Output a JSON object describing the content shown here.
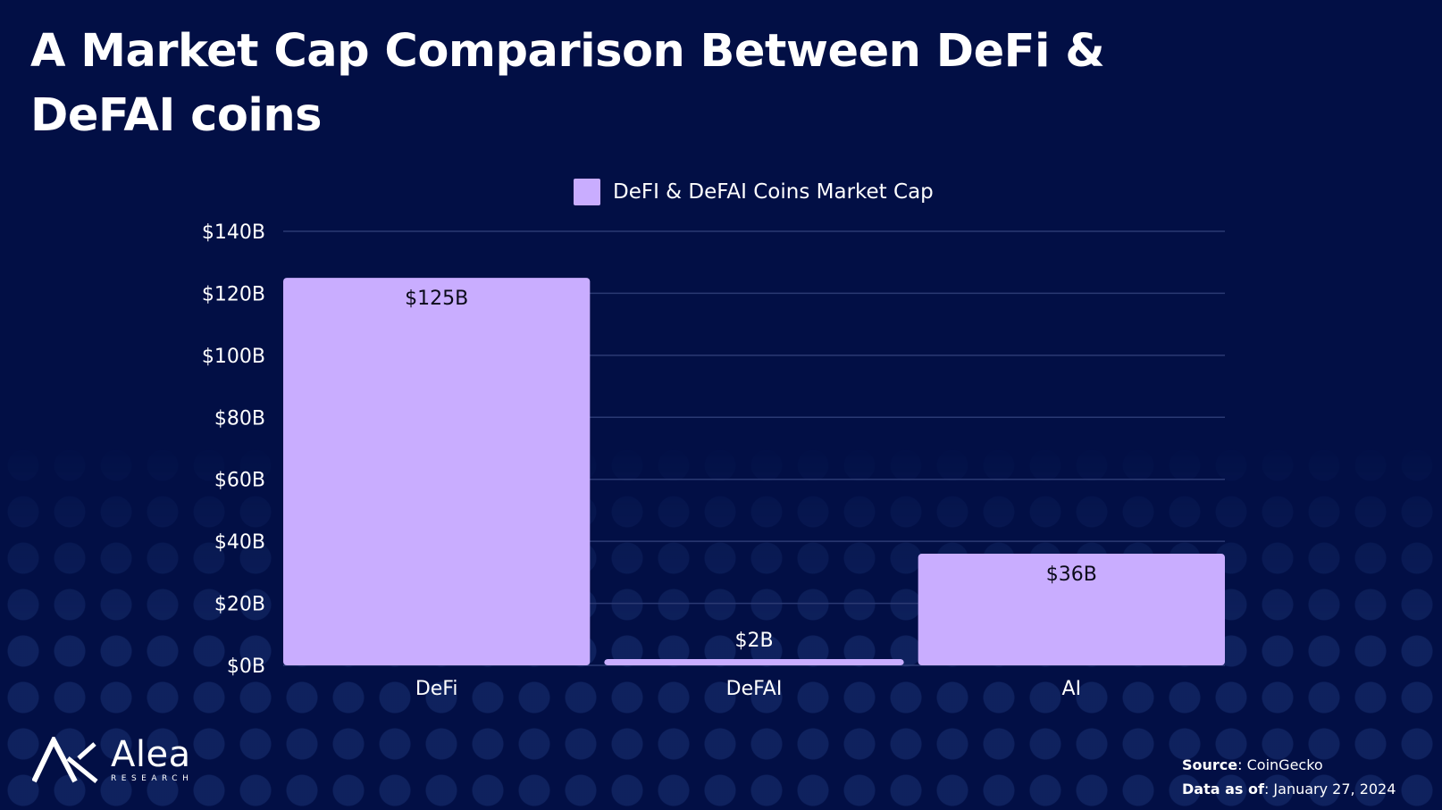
{
  "title": "A Market Cap Comparison Between DeFi & DeFAI coins",
  "chart_data": {
    "type": "bar",
    "categories": [
      "DeFi",
      "DeFAI",
      "AI"
    ],
    "series": [
      {
        "name": "DeFI & DeFAI Coins Market Cap",
        "values": [
          125,
          2,
          36
        ],
        "color": "#c9adff"
      }
    ],
    "data_labels": [
      "$125B",
      "$2B",
      "$36B"
    ],
    "ylim": [
      0,
      140
    ],
    "yticks": [
      0,
      20,
      40,
      60,
      80,
      100,
      120,
      140
    ],
    "ytick_labels": [
      "$0B",
      "$20B",
      "$40B",
      "$60B",
      "$80B",
      "$100B",
      "$120B",
      "$140B"
    ],
    "grid": true,
    "legend_position": "top-center"
  },
  "footer": {
    "brand_name": "Alea",
    "brand_sub": "RESEARCH",
    "source_label": "Source",
    "source_value": "CoinGecko",
    "date_label": "Data as of",
    "date_value": "January 27, 2024"
  },
  "colors": {
    "background": "#020f45",
    "bar": "#c9adff",
    "grid": "#2b3a73"
  }
}
